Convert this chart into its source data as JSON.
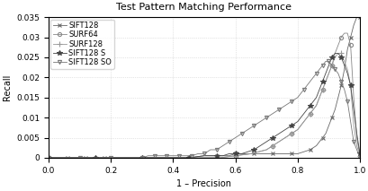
{
  "title": "Test Pattern Matching Performance",
  "xlabel": "1 – Precision",
  "ylabel": "Recall",
  "xlim": [
    0,
    1
  ],
  "ylim": [
    0,
    0.035
  ],
  "yticks": [
    0,
    0.005,
    0.01,
    0.015,
    0.02,
    0.025,
    0.03,
    0.035
  ],
  "xticks": [
    0,
    0.2,
    0.4,
    0.6,
    0.8,
    1.0
  ],
  "series": [
    {
      "label": "SIFT128",
      "marker": "x",
      "color": "#666666",
      "linewidth": 0.6,
      "markersize": 3,
      "markevery": 3,
      "x": [
        0.0,
        0.02,
        0.04,
        0.06,
        0.08,
        0.1,
        0.12,
        0.14,
        0.16,
        0.18,
        0.2,
        0.25,
        0.3,
        0.35,
        0.4,
        0.45,
        0.5,
        0.52,
        0.54,
        0.56,
        0.58,
        0.6,
        0.62,
        0.64,
        0.66,
        0.68,
        0.7,
        0.72,
        0.74,
        0.76,
        0.78,
        0.8,
        0.82,
        0.84,
        0.86,
        0.87,
        0.88,
        0.89,
        0.9,
        0.91,
        0.92,
        0.93,
        0.94,
        0.95,
        0.96,
        0.97,
        0.98,
        0.99,
        1.0
      ],
      "y": [
        0.0,
        0.0,
        0.0,
        0.0,
        0.0,
        0.0,
        0.0,
        0.0,
        0.0,
        0.0,
        0.0,
        0.0,
        0.0,
        0.0,
        0.0,
        0.0,
        0.0005,
        0.0005,
        0.0005,
        0.0005,
        0.0005,
        0.001,
        0.001,
        0.001,
        0.001,
        0.001,
        0.001,
        0.001,
        0.001,
        0.001,
        0.001,
        0.001,
        0.0015,
        0.002,
        0.003,
        0.004,
        0.005,
        0.006,
        0.008,
        0.01,
        0.012,
        0.015,
        0.018,
        0.022,
        0.027,
        0.03,
        0.033,
        0.035,
        0.035
      ]
    },
    {
      "label": "SURF64",
      "marker": "o",
      "color": "#888888",
      "linewidth": 0.6,
      "markersize": 3,
      "markevery": 3,
      "x": [
        0.0,
        0.05,
        0.1,
        0.15,
        0.2,
        0.25,
        0.3,
        0.35,
        0.4,
        0.45,
        0.5,
        0.55,
        0.6,
        0.65,
        0.7,
        0.72,
        0.74,
        0.76,
        0.78,
        0.8,
        0.82,
        0.84,
        0.86,
        0.87,
        0.88,
        0.89,
        0.9,
        0.91,
        0.92,
        0.93,
        0.94,
        0.95,
        0.96,
        0.97,
        0.98,
        0.99,
        1.0
      ],
      "y": [
        0.0,
        0.0,
        0.0,
        0.0,
        0.0,
        0.0,
        0.0,
        0.0,
        0.0,
        0.0,
        0.0,
        0.0,
        0.0005,
        0.001,
        0.002,
        0.003,
        0.004,
        0.005,
        0.006,
        0.007,
        0.009,
        0.011,
        0.013,
        0.015,
        0.017,
        0.019,
        0.021,
        0.023,
        0.026,
        0.028,
        0.03,
        0.031,
        0.031,
        0.028,
        0.015,
        0.005,
        0.0005
      ]
    },
    {
      "label": "SURF128",
      "marker": "+",
      "color": "#999999",
      "linewidth": 0.6,
      "markersize": 4,
      "markevery": 3,
      "x": [
        0.0,
        0.05,
        0.1,
        0.15,
        0.2,
        0.25,
        0.3,
        0.35,
        0.4,
        0.45,
        0.5,
        0.55,
        0.6,
        0.65,
        0.7,
        0.72,
        0.74,
        0.76,
        0.78,
        0.8,
        0.82,
        0.84,
        0.86,
        0.87,
        0.88,
        0.89,
        0.9,
        0.91,
        0.92,
        0.93,
        0.94,
        0.95,
        0.96,
        0.97,
        0.98,
        0.99,
        1.0
      ],
      "y": [
        0.0,
        0.0,
        0.0,
        0.0,
        0.0,
        0.0,
        0.0,
        0.0,
        0.0,
        0.0,
        0.0,
        0.0,
        0.0005,
        0.001,
        0.002,
        0.003,
        0.004,
        0.005,
        0.006,
        0.007,
        0.009,
        0.011,
        0.013,
        0.015,
        0.017,
        0.019,
        0.021,
        0.023,
        0.025,
        0.026,
        0.026,
        0.024,
        0.022,
        0.018,
        0.008,
        0.003,
        0.0005
      ]
    },
    {
      "label": "SIFT128 S",
      "marker": "*",
      "color": "#444444",
      "linewidth": 0.6,
      "markersize": 4,
      "markevery": 3,
      "x": [
        0.0,
        0.05,
        0.1,
        0.15,
        0.2,
        0.25,
        0.3,
        0.35,
        0.4,
        0.45,
        0.5,
        0.52,
        0.54,
        0.56,
        0.58,
        0.6,
        0.62,
        0.64,
        0.66,
        0.68,
        0.7,
        0.72,
        0.74,
        0.76,
        0.78,
        0.8,
        0.82,
        0.84,
        0.86,
        0.87,
        0.88,
        0.89,
        0.9,
        0.91,
        0.92,
        0.93,
        0.94,
        0.95,
        0.96,
        0.97,
        0.98,
        0.99,
        1.0
      ],
      "y": [
        0.0,
        0.0,
        0.0,
        0.0,
        0.0,
        0.0,
        0.0,
        0.0,
        0.0,
        0.0,
        0.0005,
        0.0005,
        0.0005,
        0.0005,
        0.001,
        0.001,
        0.001,
        0.0015,
        0.002,
        0.003,
        0.004,
        0.005,
        0.006,
        0.007,
        0.008,
        0.009,
        0.011,
        0.013,
        0.015,
        0.017,
        0.019,
        0.021,
        0.023,
        0.025,
        0.026,
        0.026,
        0.025,
        0.023,
        0.021,
        0.018,
        0.012,
        0.006,
        0.001
      ]
    },
    {
      "label": "SIFT128 SO",
      "marker": "v",
      "color": "#777777",
      "linewidth": 0.6,
      "markersize": 3,
      "markevery": 2,
      "x": [
        0.0,
        0.05,
        0.1,
        0.15,
        0.2,
        0.25,
        0.3,
        0.32,
        0.34,
        0.36,
        0.38,
        0.4,
        0.42,
        0.44,
        0.46,
        0.48,
        0.5,
        0.52,
        0.54,
        0.56,
        0.58,
        0.6,
        0.62,
        0.64,
        0.66,
        0.68,
        0.7,
        0.72,
        0.74,
        0.76,
        0.78,
        0.8,
        0.82,
        0.84,
        0.86,
        0.87,
        0.88,
        0.89,
        0.9,
        0.91,
        0.92,
        0.93,
        0.94,
        0.95,
        0.96,
        0.97,
        0.98,
        1.0
      ],
      "y": [
        0.0,
        0.0,
        0.0,
        0.0,
        0.0,
        0.0,
        0.0,
        0.0005,
        0.0005,
        0.0005,
        0.0005,
        0.0005,
        0.0005,
        0.0005,
        0.0005,
        0.001,
        0.001,
        0.002,
        0.002,
        0.003,
        0.004,
        0.005,
        0.006,
        0.007,
        0.008,
        0.009,
        0.01,
        0.011,
        0.012,
        0.013,
        0.014,
        0.015,
        0.017,
        0.019,
        0.021,
        0.022,
        0.023,
        0.024,
        0.024,
        0.023,
        0.022,
        0.021,
        0.019,
        0.017,
        0.014,
        0.009,
        0.004,
        0.0
      ]
    }
  ],
  "background_color": "#ffffff",
  "grid_color": "#cccccc"
}
